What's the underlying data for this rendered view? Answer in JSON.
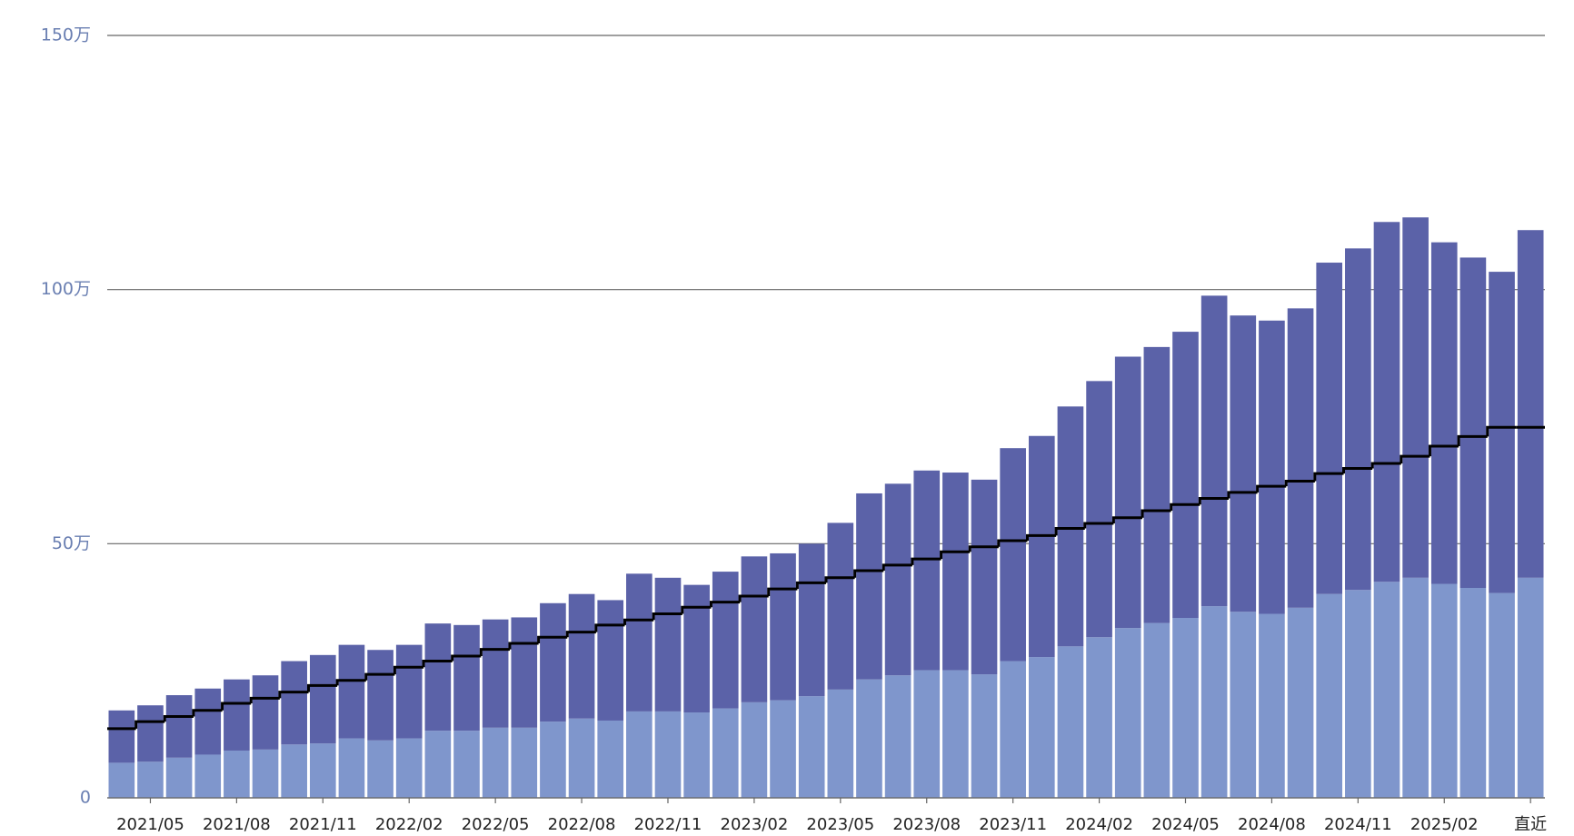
{
  "chart_data": {
    "type": "bar",
    "stacked": true,
    "categories": [
      null,
      "2021/05",
      null,
      null,
      "2021/08",
      null,
      null,
      "2021/11",
      null,
      null,
      "2022/02",
      null,
      null,
      "2022/05",
      null,
      null,
      "2022/08",
      null,
      null,
      "2022/11",
      null,
      null,
      "2023/02",
      null,
      null,
      "2023/05",
      null,
      null,
      "2023/08",
      null,
      null,
      "2023/11",
      null,
      null,
      "2024/02",
      null,
      null,
      "2024/05",
      null,
      null,
      "2024/08",
      null,
      null,
      "2024/11",
      null,
      null,
      "2025/02",
      null,
      null,
      "直近"
    ],
    "series": [
      {
        "color": "#7f96cc",
        "values": [
          6.9,
          7.1,
          7.9,
          8.5,
          9.3,
          9.5,
          10.5,
          10.7,
          11.7,
          11.3,
          11.7,
          13.2,
          13.2,
          13.8,
          13.8,
          15.0,
          15.6,
          15.2,
          17.0,
          17.0,
          16.8,
          17.6,
          18.8,
          19.2,
          20.0,
          21.3,
          23.3,
          24.1,
          25.1,
          25.1,
          24.3,
          26.9,
          27.7,
          29.8,
          31.6,
          33.4,
          34.4,
          35.4,
          37.7,
          36.6,
          36.2,
          37.4,
          40.1,
          40.9,
          42.5,
          43.3,
          42.1,
          41.3,
          40.3,
          43.3
        ]
      },
      {
        "color": "#5b62a8",
        "values": [
          10.3,
          11.1,
          12.3,
          13.0,
          14.0,
          14.6,
          16.4,
          17.4,
          18.4,
          17.8,
          18.4,
          21.1,
          20.8,
          21.3,
          21.7,
          23.3,
          24.5,
          23.7,
          27.1,
          26.3,
          25.1,
          26.9,
          28.7,
          28.9,
          30.0,
          32.8,
          36.6,
          37.7,
          39.3,
          38.9,
          38.3,
          41.9,
          43.5,
          47.2,
          50.4,
          53.4,
          54.3,
          56.3,
          61.1,
          58.3,
          57.7,
          58.9,
          65.2,
          67.2,
          70.8,
          70.9,
          67.2,
          65.0,
          63.2,
          68.4
        ]
      },
      {
        "type": "step",
        "color": "#000000",
        "values": [
          13.6,
          15.0,
          16.0,
          17.2,
          18.6,
          19.6,
          20.8,
          22.1,
          23.1,
          24.3,
          25.7,
          26.9,
          27.9,
          29.2,
          30.4,
          31.6,
          32.6,
          34.0,
          35.0,
          36.2,
          37.5,
          38.5,
          39.7,
          41.1,
          42.3,
          43.3,
          44.7,
          45.8,
          47.0,
          48.4,
          49.4,
          50.6,
          51.6,
          53.0,
          54.0,
          55.1,
          56.5,
          57.7,
          58.9,
          60.1,
          61.3,
          62.3,
          63.8,
          64.8,
          65.8,
          67.2,
          69.2,
          71.1,
          72.9,
          72.9
        ]
      }
    ],
    "ylim": [
      0,
      150
    ],
    "yticks": [
      {
        "value": 0,
        "label": "0"
      },
      {
        "value": 50,
        "label": "50万"
      },
      {
        "value": 100,
        "label": "100万"
      },
      {
        "value": 150,
        "label": "150万"
      }
    ],
    "grid": true
  }
}
